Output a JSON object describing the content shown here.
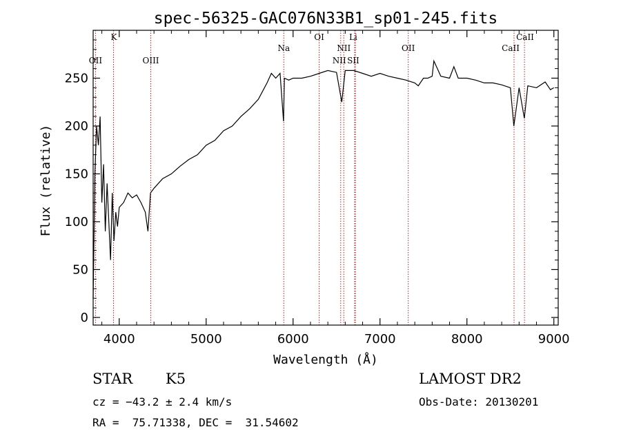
{
  "chart_data": {
    "type": "line",
    "title": "spec-56325-GAC076N33B1_sp01-245.fits",
    "xlabel": "Wavelength (Å)",
    "ylabel": "Flux (relative)",
    "xlim": [
      3700,
      9050
    ],
    "ylim": [
      -8,
      300
    ],
    "xticks": [
      4000,
      5000,
      6000,
      7000,
      8000,
      9000
    ],
    "yticks": [
      0,
      50,
      100,
      150,
      200,
      250
    ],
    "grid": false,
    "series": [
      {
        "x": [
          3700,
          3720,
          3740,
          3760,
          3780,
          3800,
          3820,
          3840,
          3860,
          3880,
          3900,
          3920,
          3940,
          3960,
          3980,
          4000,
          4050,
          4100,
          4150,
          4200,
          4250,
          4300,
          4330,
          4360,
          4400,
          4450,
          4500,
          4600,
          4700,
          4800,
          4900,
          5000,
          5100,
          5200,
          5300,
          5400,
          5500,
          5600,
          5700,
          5750,
          5800,
          5850,
          5890,
          5900,
          5950,
          6000,
          6100,
          6200,
          6300,
          6400,
          6500,
          6560,
          6600,
          6700,
          6800,
          6900,
          7000,
          7100,
          7200,
          7300,
          7400,
          7440,
          7500,
          7550,
          7600,
          7620,
          7700,
          7800,
          7850,
          7900,
          8000,
          8100,
          8200,
          8300,
          8400,
          8500,
          8540,
          8600,
          8660,
          8700,
          8800,
          8900,
          8960,
          9000
        ],
        "y": [
          20,
          150,
          200,
          180,
          210,
          120,
          160,
          90,
          140,
          100,
          60,
          130,
          80,
          110,
          95,
          115,
          120,
          130,
          125,
          128,
          120,
          110,
          90,
          130,
          135,
          140,
          145,
          150,
          158,
          165,
          170,
          180,
          185,
          195,
          200,
          210,
          218,
          228,
          245,
          255,
          250,
          255,
          205,
          250,
          248,
          250,
          250,
          252,
          255,
          258,
          256,
          225,
          258,
          258,
          255,
          252,
          255,
          252,
          250,
          248,
          245,
          242,
          250,
          250,
          252,
          268,
          252,
          250,
          262,
          250,
          250,
          248,
          245,
          245,
          243,
          240,
          200,
          240,
          208,
          242,
          240,
          246,
          238,
          240
        ]
      }
    ],
    "line_markers": [
      {
        "label": "OII",
        "x": 3727
      },
      {
        "label": "K",
        "x": 3934
      },
      {
        "label": "OIII",
        "x": 4363
      },
      {
        "label": "Na",
        "x": 5893
      },
      {
        "label": "OI",
        "x": 6300
      },
      {
        "label": "NII",
        "x": 6548
      },
      {
        "label": "NII",
        "x": 6583
      },
      {
        "label": "Li",
        "x": 6708
      },
      {
        "label": "SII",
        "x": 6717
      },
      {
        "label": "OII",
        "x": 7325
      },
      {
        "label": "CaII",
        "x": 8542
      },
      {
        "label": "CaII",
        "x": 8662
      }
    ]
  },
  "info": {
    "class": "STAR",
    "subclass": "K5",
    "cz": "cz = −43.2 ± 2.4 km/s",
    "coords": "RA =  75.71338, DEC =  31.54602",
    "survey": "LAMOST DR2",
    "obs_date": "Obs-Date: 20130201"
  }
}
